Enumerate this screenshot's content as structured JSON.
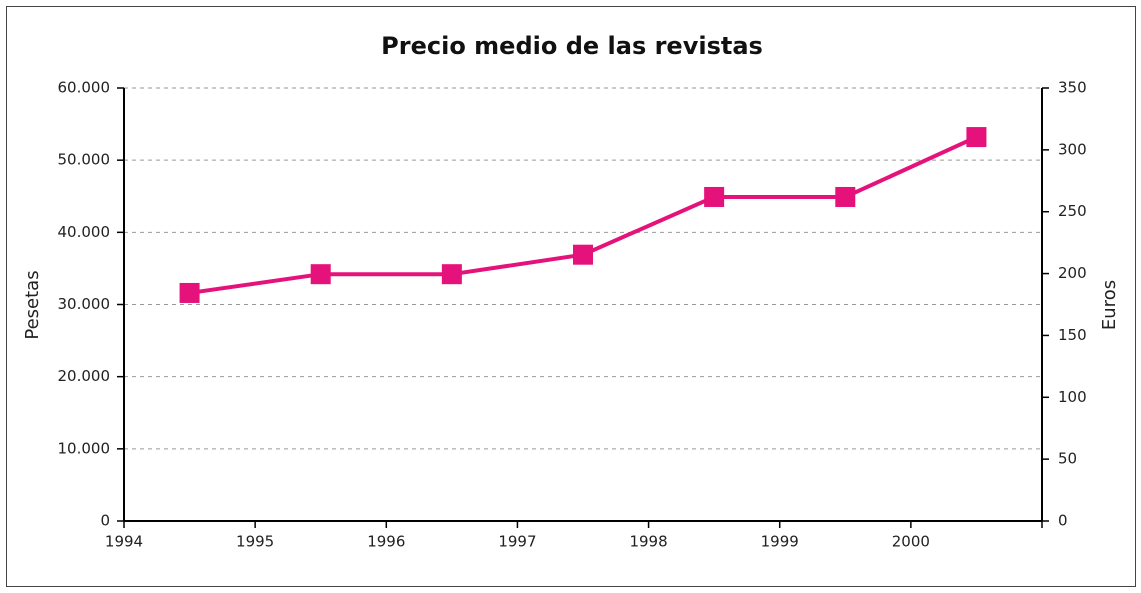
{
  "chart_data": {
    "type": "line",
    "title": "Precio medio de las revistas",
    "ylabel": "Pesetas",
    "y2label": "Euros",
    "x": [
      1994.5,
      1995.5,
      1996.5,
      1997.5,
      1998.5,
      1999.5,
      2000.5
    ],
    "xlim": [
      1994,
      2001
    ],
    "xticks": [
      1994,
      1995,
      1996,
      1997,
      1998,
      1999,
      2000
    ],
    "series": [
      {
        "color": "#e4127a",
        "values": [
          31600,
          34200,
          34200,
          36900,
          44900,
          44900,
          53200
        ]
      }
    ],
    "ylim": [
      0,
      60000
    ],
    "yticks": [
      0,
      {
        "value": 10000,
        "label": "10.000"
      },
      {
        "value": 20000,
        "label": "20.000"
      },
      {
        "value": 30000,
        "label": "30.000"
      },
      {
        "value": 40000,
        "label": "40.000"
      },
      {
        "value": 50000,
        "label": "50.000"
      },
      {
        "value": 60000,
        "label": "60.000"
      }
    ],
    "y2lim": [
      0,
      350
    ],
    "y2ticks": [
      0,
      50,
      100,
      150,
      200,
      250,
      300,
      350
    ],
    "grid": true
  }
}
